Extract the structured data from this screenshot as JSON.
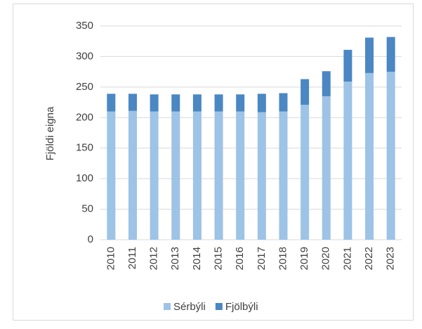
{
  "chart_data": {
    "type": "stacked_bar",
    "y_label": "Fjöldi eigna",
    "categories": [
      "2010",
      "2011",
      "2012",
      "2013",
      "2014",
      "2015",
      "2016",
      "2017",
      "2018",
      "2019",
      "2020",
      "2021",
      "2022",
      "2023"
    ],
    "series": [
      {
        "name": "Sérbýli",
        "color": "#9dc3e6",
        "values": [
          210,
          211,
          210,
          210,
          210,
          210,
          210,
          209,
          210,
          221,
          235,
          259,
          273,
          275
        ]
      },
      {
        "name": "Fjölbýli",
        "color": "#4a87c3",
        "values": [
          29,
          28,
          28,
          28,
          28,
          28,
          28,
          30,
          30,
          42,
          41,
          52,
          58,
          57
        ]
      }
    ],
    "ylim": [
      0,
      350
    ],
    "yticks": [
      0,
      50,
      100,
      150,
      200,
      250,
      300,
      350
    ],
    "grid": true,
    "legend": "bottom"
  }
}
